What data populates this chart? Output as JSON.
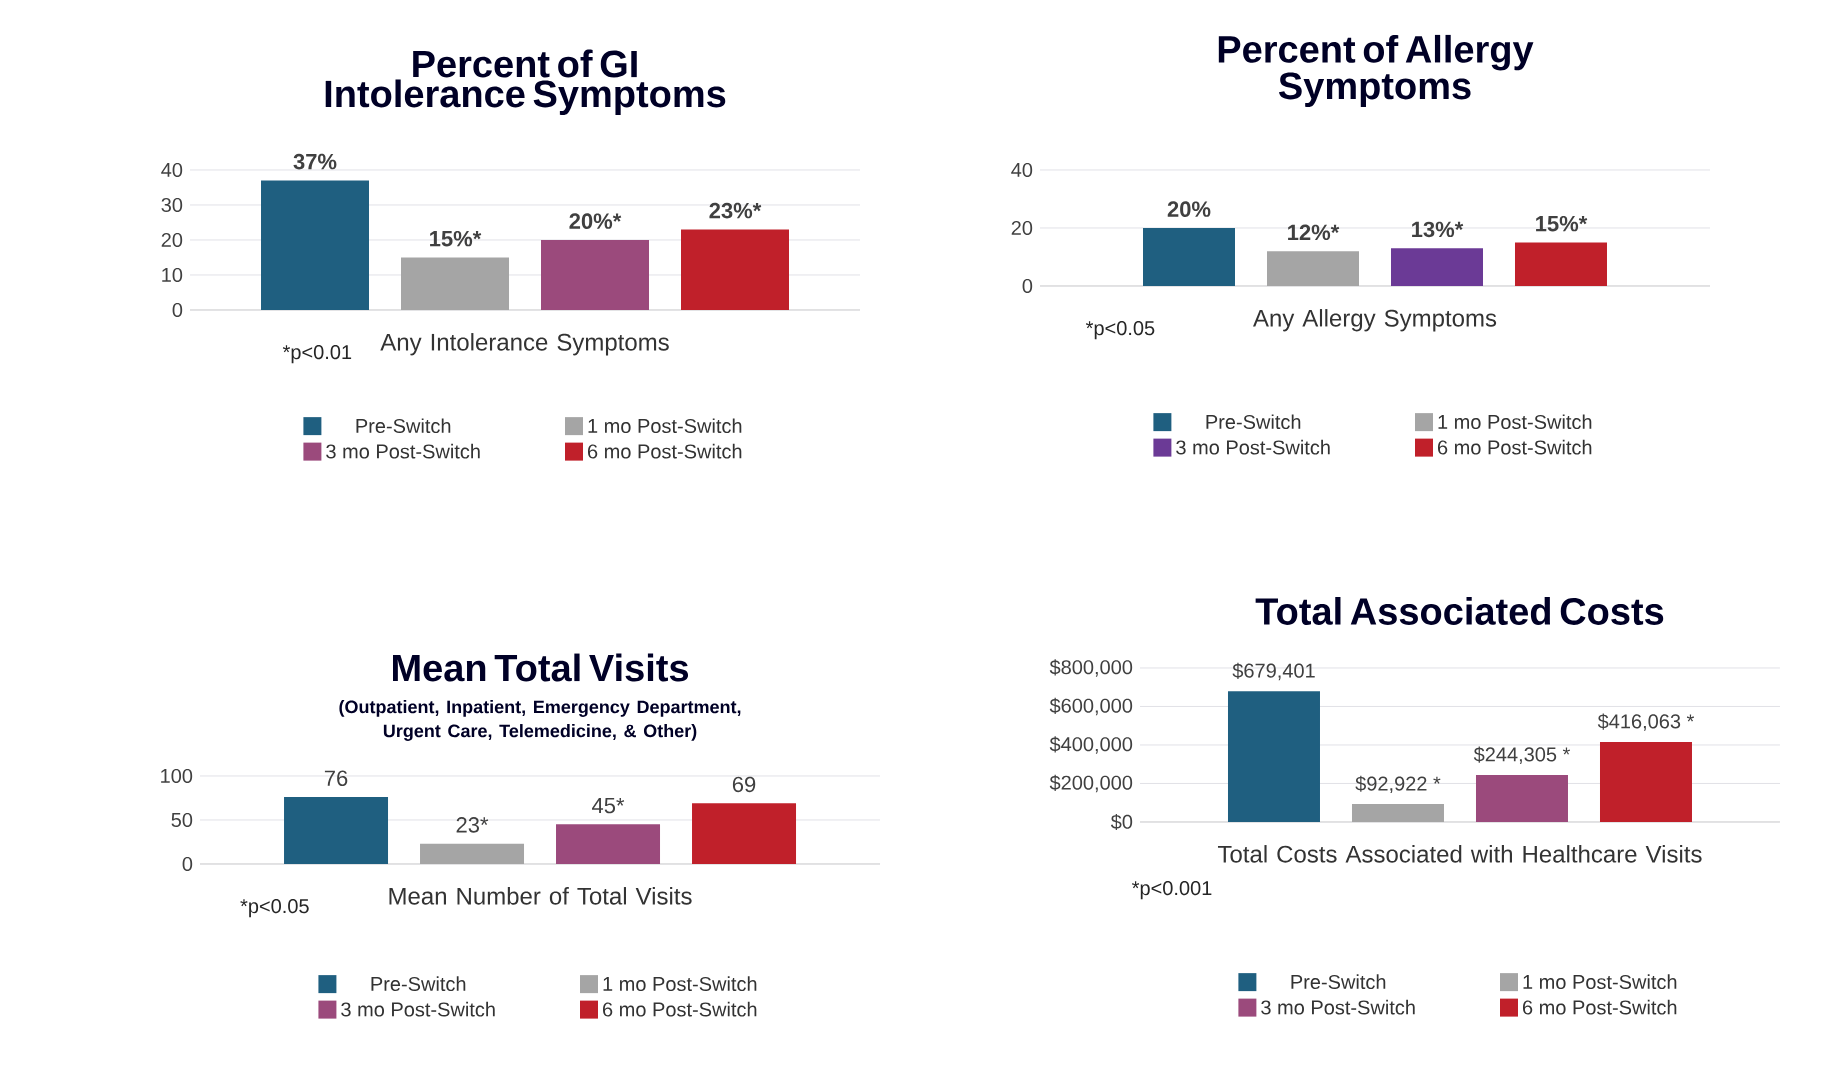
{
  "chart_data": [
    {
      "type": "bar",
      "title": "Percent of GI Intolerance Symptoms",
      "categories": [
        "Any Intolerance Symptoms"
      ],
      "ylim": [
        0,
        40
      ],
      "yticks": [
        0,
        10,
        20,
        30,
        40
      ],
      "grid": "y",
      "legend": "bottom",
      "annotations": [
        "*p<0.01"
      ],
      "series": [
        {
          "name": "Pre-Switch",
          "color": "#1f5f80",
          "values": [
            37
          ],
          "value_labels": [
            "37%"
          ]
        },
        {
          "name": "1 mo Post-Switch",
          "color": "#a5a5a5",
          "values": [
            15
          ],
          "value_labels": [
            "15%*"
          ]
        },
        {
          "name": "3 mo Post-Switch",
          "color": "#9b4a7c",
          "values": [
            20
          ],
          "value_labels": [
            "20%*"
          ]
        },
        {
          "name": "6 mo Post-Switch",
          "color": "#c0202a",
          "values": [
            23
          ],
          "value_labels": [
            "23%*"
          ]
        }
      ]
    },
    {
      "type": "bar",
      "title": "Percent of Allergy Symptoms",
      "categories": [
        "Any Allergy Symptoms"
      ],
      "ylim": [
        0,
        40
      ],
      "yticks": [
        0,
        20,
        40
      ],
      "grid": "y",
      "legend": "bottom",
      "annotations": [
        "*p<0.05"
      ],
      "series": [
        {
          "name": "Pre-Switch",
          "color": "#1f5f80",
          "values": [
            20
          ],
          "value_labels": [
            "20%"
          ]
        },
        {
          "name": "1 mo Post-Switch",
          "color": "#a5a5a5",
          "values": [
            12
          ],
          "value_labels": [
            "12%*"
          ]
        },
        {
          "name": "3 mo Post-Switch",
          "color": "#6b3a96",
          "values": [
            13
          ],
          "value_labels": [
            "13%*"
          ]
        },
        {
          "name": "6 mo Post-Switch",
          "color": "#c0202a",
          "values": [
            15
          ],
          "value_labels": [
            "15%*"
          ]
        }
      ]
    },
    {
      "type": "bar",
      "title": "Mean Total Visits",
      "subtitle": "(Outpatient, Inpatient, Emergency Department, Urgent Care, Telemedicine, & Other)",
      "categories": [
        "Mean Number of Total Visits"
      ],
      "ylim": [
        0,
        100
      ],
      "yticks": [
        0,
        50,
        100
      ],
      "grid": "y",
      "legend": "bottom",
      "annotations": [
        "*p<0.05"
      ],
      "series": [
        {
          "name": "Pre-Switch",
          "color": "#1f5f80",
          "values": [
            76
          ],
          "value_labels": [
            "76"
          ]
        },
        {
          "name": "1 mo Post-Switch",
          "color": "#a5a5a5",
          "values": [
            23
          ],
          "value_labels": [
            "23*"
          ]
        },
        {
          "name": "3 mo Post-Switch",
          "color": "#9b4a7c",
          "values": [
            45
          ],
          "value_labels": [
            "45*"
          ]
        },
        {
          "name": "6 mo Post-Switch",
          "color": "#c0202a",
          "values": [
            69
          ],
          "value_labels": [
            "69"
          ]
        }
      ]
    },
    {
      "type": "bar",
      "title": "Total Associated Costs",
      "categories": [
        "Total Costs Associated with Healthcare Visits"
      ],
      "ylim": [
        0,
        800000
      ],
      "yticks": [
        {
          "value": 0,
          "label": "$0"
        },
        {
          "value": 200000,
          "label": "$200,000"
        },
        {
          "value": 400000,
          "label": "$400,000"
        },
        {
          "value": 600000,
          "label": "$600,000"
        },
        {
          "value": 800000,
          "label": "$800,000"
        }
      ],
      "grid": "y",
      "legend": "bottom",
      "annotations": [
        "*p<0.001"
      ],
      "series": [
        {
          "name": "Pre-Switch",
          "color": "#1f5f80",
          "values": [
            679401
          ],
          "value_labels": [
            "$679,401"
          ]
        },
        {
          "name": "1 mo Post-Switch",
          "color": "#a5a5a5",
          "values": [
            92922
          ],
          "value_labels": [
            "$92,922 *"
          ]
        },
        {
          "name": "3 mo Post-Switch",
          "color": "#9b4a7c",
          "values": [
            244305
          ],
          "value_labels": [
            "$244,305 *"
          ]
        },
        {
          "name": "6 mo Post-Switch",
          "color": "#c0202a",
          "values": [
            416063
          ],
          "value_labels": [
            "$416,063 *"
          ]
        }
      ]
    }
  ]
}
